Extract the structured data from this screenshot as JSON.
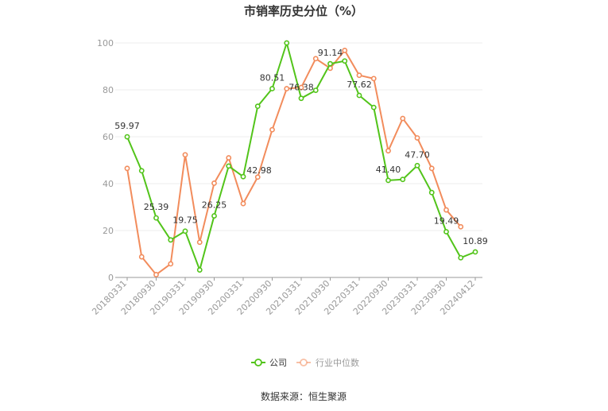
{
  "chart_data": {
    "type": "line",
    "title": "市销率历史分位（%）",
    "ylim": [
      0,
      100
    ],
    "yticks": [
      0,
      20,
      40,
      60,
      80,
      100
    ],
    "grid": true,
    "legend_position": "bottom",
    "x": [
      "20180331",
      "20180630",
      "20180930",
      "20181231",
      "20190331",
      "20190630",
      "20190930",
      "20191231",
      "20200331",
      "20200630",
      "20200930",
      "20201231",
      "20210331",
      "20210630",
      "20210930",
      "20211231",
      "20220331",
      "20220630",
      "20220930",
      "20221231",
      "20230331",
      "20230630",
      "20230930",
      "20231231",
      "20240412"
    ],
    "x_tick_labels": [
      "20180331",
      "20180930",
      "20190331",
      "20190930",
      "20200331",
      "20200930",
      "20210331",
      "20210930",
      "20220331",
      "20220930",
      "20230331",
      "20230930",
      "20240412"
    ],
    "series": [
      {
        "name": "公司",
        "color": "#52c41a",
        "values": [
          59.97,
          45.5,
          25.39,
          16.0,
          19.75,
          3.2,
          26.25,
          47.5,
          42.98,
          73.0,
          80.51,
          100.0,
          76.38,
          79.8,
          91.14,
          92.3,
          77.62,
          72.5,
          41.4,
          41.8,
          47.7,
          36.2,
          19.49,
          8.4,
          10.89
        ],
        "labels": {
          "0": "59.97",
          "2": "25.39",
          "4": "19.75",
          "6": "26.25",
          "8": "42.98",
          "10": "80.51",
          "12": "76.38",
          "14": "91.14",
          "16": "77.62",
          "18": "41.40",
          "20": "47.70",
          "22": "19.49",
          "24": "10.89"
        }
      },
      {
        "name": "行业中位数",
        "color": "#f28c5c",
        "values": [
          46.5,
          8.8,
          1.2,
          5.8,
          52.3,
          15.0,
          40.2,
          51.0,
          31.5,
          42.8,
          63.0,
          80.5,
          81.0,
          93.3,
          89.2,
          96.8,
          86.2,
          84.8,
          54.0,
          67.8,
          59.5,
          46.5,
          28.8,
          21.6,
          null
        ]
      }
    ]
  },
  "footer": {
    "source": "数据来源：恒生聚源"
  }
}
